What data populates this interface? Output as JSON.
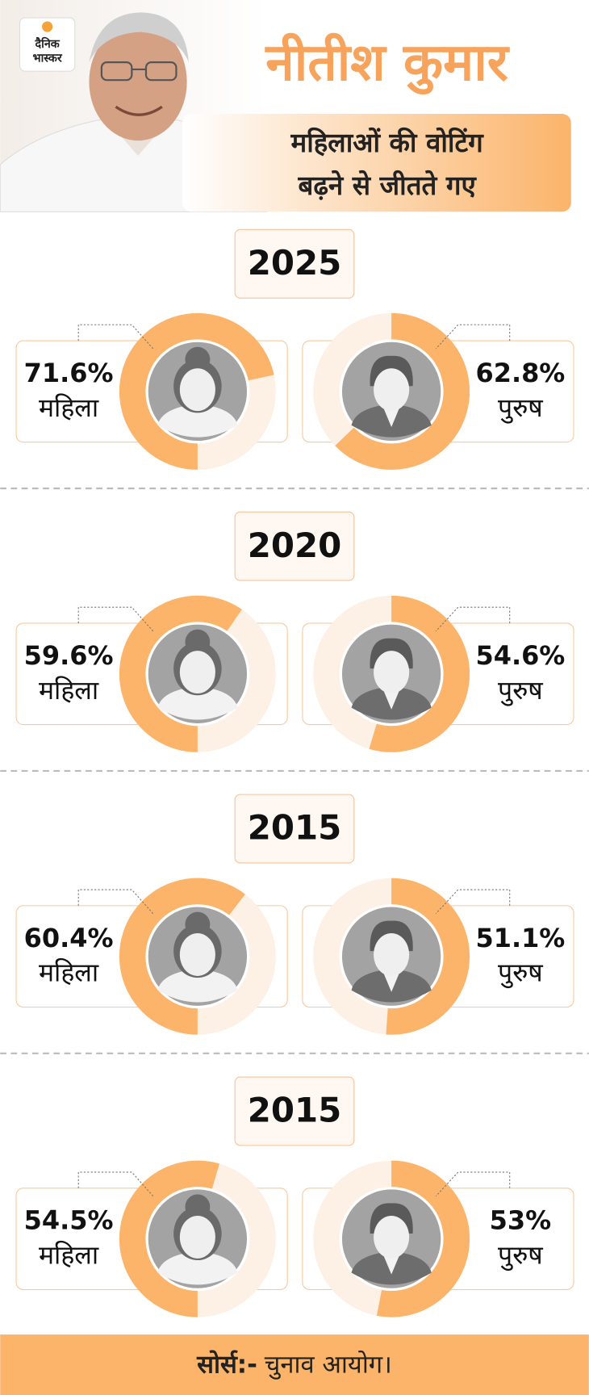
{
  "header": {
    "logo": [
      "दैनिक",
      "भास्कर"
    ],
    "title": "नीतीश कुमार",
    "subtitle": [
      "महिलाओं की वोटिंग",
      "बढ़ने से जीतते गए"
    ]
  },
  "sections": [
    {
      "year": "2025",
      "women": {
        "value": 71.6,
        "label": "71.6%",
        "name": "महिला"
      },
      "men": {
        "value": 62.8,
        "label": "62.8%",
        "name": "पुरुष"
      }
    },
    {
      "year": "2020",
      "women": {
        "value": 59.6,
        "label": "59.6%",
        "name": "महिला"
      },
      "men": {
        "value": 54.6,
        "label": "54.6%",
        "name": "पुरुष"
      }
    },
    {
      "year": "2015",
      "women": {
        "value": 60.4,
        "label": "60.4%",
        "name": "महिला"
      },
      "men": {
        "value": 51.1,
        "label": "51.1%",
        "name": "पुरुष"
      }
    },
    {
      "year": "2015",
      "women": {
        "value": 54.5,
        "label": "54.5%",
        "name": "महिला"
      },
      "men": {
        "value": 53,
        "label": "53%",
        "name": "पुरुष"
      }
    }
  ],
  "footer": {
    "source_label": "सोर्स:-",
    "source": "चुनाव आयोग।"
  }
}
